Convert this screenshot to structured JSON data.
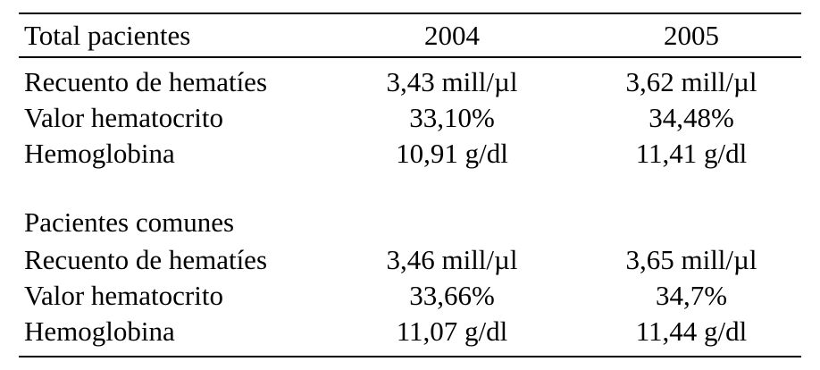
{
  "table": {
    "header": {
      "label": "Total pacientes",
      "col_2004": "2004",
      "col_2005": "2005"
    },
    "total": [
      {
        "label": "Recuento de hematíes",
        "v2004": "3,43 mill/µl",
        "v2005": "3,62 mill/µl"
      },
      {
        "label": "Valor hematocrito",
        "v2004": "33,10%",
        "v2005": "34,48%"
      },
      {
        "label": "Hemoglobina",
        "v2004": "10,91 g/dl",
        "v2005": "11,41 g/dl"
      }
    ],
    "section2_title": "Pacientes comunes",
    "comunes": [
      {
        "label": "Recuento de hematíes",
        "v2004": "3,46 mill/µl",
        "v2005": "3,65 mill/µl"
      },
      {
        "label": "Valor hematocrito",
        "v2004": "33,66%",
        "v2005": "34,7%"
      },
      {
        "label": "Hemoglobina",
        "v2004": "11,07 g/dl",
        "v2005": "11,44 g/dl"
      }
    ]
  }
}
